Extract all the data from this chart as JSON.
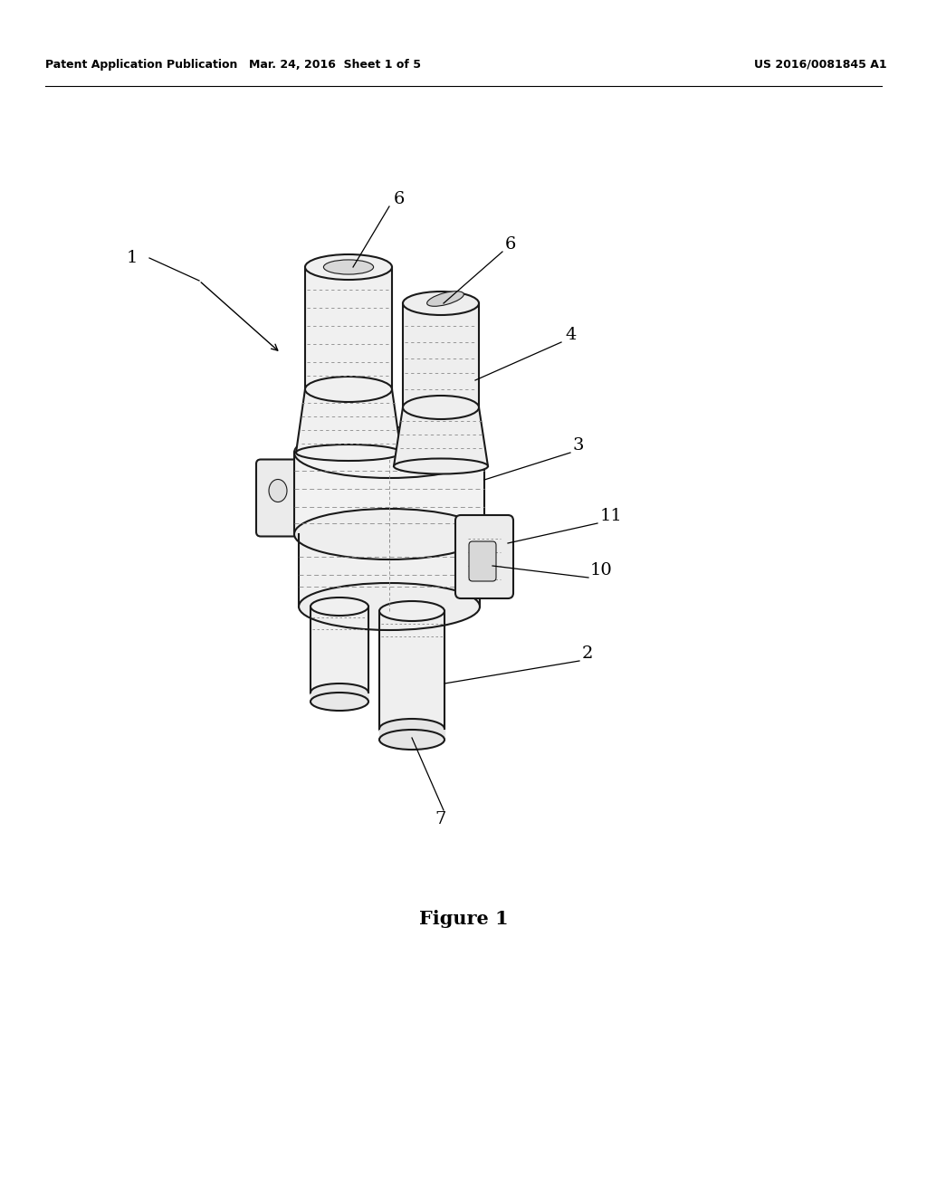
{
  "bg_color": "#ffffff",
  "line_color": "#1a1a1a",
  "dashed_color": "#888888",
  "fig_width": 10.24,
  "fig_height": 13.2,
  "header_left": "Patent Application Publication",
  "header_center": "Mar. 24, 2016  Sheet 1 of 5",
  "header_right": "US 2016/0081845 A1",
  "figure_caption": "Figure 1",
  "lw_main": 1.5,
  "lw_thin": 0.8,
  "lw_dashed": 0.6
}
